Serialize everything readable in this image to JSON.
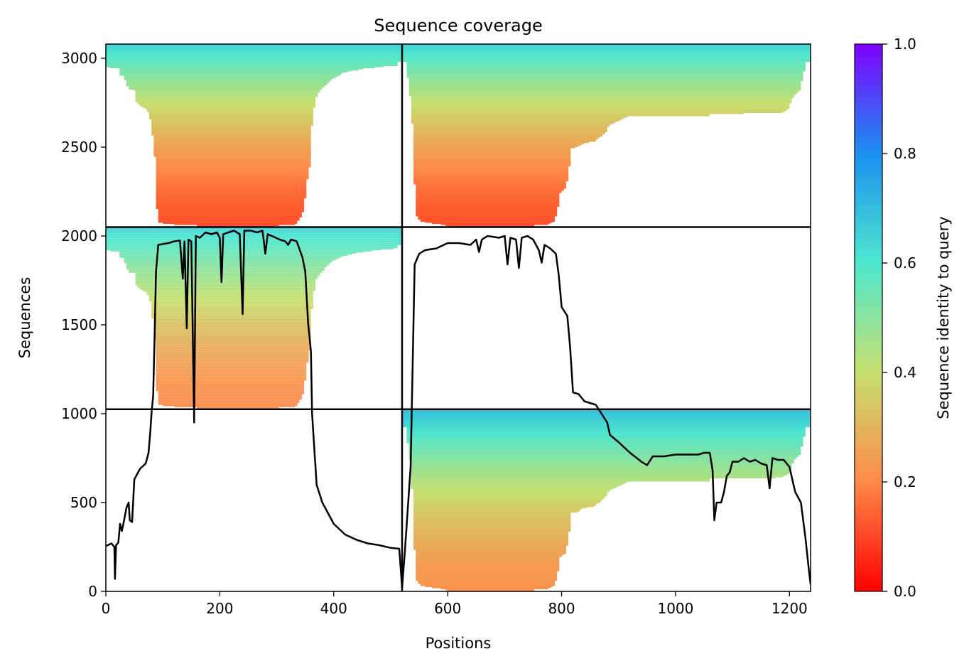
{
  "chart_data": {
    "type": "heatmap",
    "title": "Sequence coverage",
    "xlabel": "Positions",
    "ylabel": "Sequences",
    "xlim": [
      0,
      1237
    ],
    "ylim": [
      0,
      3080
    ],
    "xticks": [
      0,
      200,
      400,
      600,
      800,
      1000,
      1200
    ],
    "yticks": [
      0,
      500,
      1000,
      1500,
      2000,
      2500,
      3000
    ],
    "colorbar": {
      "label": "Sequence identity to query",
      "range": [
        0.0,
        1.0
      ],
      "ticks": [
        "0.0",
        "0.2",
        "0.4",
        "0.6",
        "0.8",
        "1.0"
      ],
      "colormap": "rainbow_r"
    },
    "block_boundaries": {
      "x": [
        520
      ],
      "y": [
        1025,
        2050
      ]
    },
    "coverage_blocks": [
      {
        "x": [
          0,
          520
        ],
        "y": [
          2050,
          3080
        ],
        "identity_top": 0.65,
        "identity_bottom": 0.12
      },
      {
        "x": [
          520,
          1237
        ],
        "y": [
          2050,
          3080
        ],
        "identity_top": 0.65,
        "identity_bottom": 0.12
      },
      {
        "x": [
          0,
          520
        ],
        "y": [
          1025,
          2050
        ],
        "identity_top": 0.65,
        "identity_bottom": 0.2
      },
      {
        "x": [
          520,
          1237
        ],
        "y": [
          0,
          1025
        ],
        "identity_top": 0.7,
        "identity_bottom": 0.22
      }
    ],
    "series": [
      {
        "type": "line",
        "color": "#000000",
        "points": [
          [
            0,
            255
          ],
          [
            10,
            270
          ],
          [
            15,
            250
          ],
          [
            16,
            70
          ],
          [
            18,
            260
          ],
          [
            22,
            275
          ],
          [
            25,
            380
          ],
          [
            28,
            340
          ],
          [
            32,
            400
          ],
          [
            36,
            470
          ],
          [
            40,
            500
          ],
          [
            42,
            400
          ],
          [
            46,
            390
          ],
          [
            50,
            630
          ],
          [
            55,
            660
          ],
          [
            60,
            690
          ],
          [
            65,
            705
          ],
          [
            70,
            720
          ],
          [
            75,
            780
          ],
          [
            78,
            900
          ],
          [
            80,
            1000
          ],
          [
            83,
            1100
          ],
          [
            86,
            1500
          ],
          [
            88,
            1800
          ],
          [
            92,
            1950
          ],
          [
            100,
            1955
          ],
          [
            110,
            1960
          ],
          [
            120,
            1970
          ],
          [
            130,
            1975
          ],
          [
            135,
            1760
          ],
          [
            138,
            1970
          ],
          [
            142,
            1480
          ],
          [
            145,
            1980
          ],
          [
            150,
            1970
          ],
          [
            155,
            950
          ],
          [
            158,
            2000
          ],
          [
            165,
            1990
          ],
          [
            175,
            2020
          ],
          [
            185,
            2010
          ],
          [
            195,
            2020
          ],
          [
            200,
            1990
          ],
          [
            203,
            1740
          ],
          [
            206,
            2010
          ],
          [
            215,
            2020
          ],
          [
            225,
            2030
          ],
          [
            235,
            2010
          ],
          [
            240,
            1560
          ],
          [
            243,
            2030
          ],
          [
            255,
            2030
          ],
          [
            265,
            2020
          ],
          [
            275,
            2030
          ],
          [
            280,
            1900
          ],
          [
            284,
            2010
          ],
          [
            295,
            1995
          ],
          [
            305,
            1980
          ],
          [
            315,
            1970
          ],
          [
            320,
            1950
          ],
          [
            325,
            1980
          ],
          [
            335,
            1970
          ],
          [
            345,
            1880
          ],
          [
            350,
            1800
          ],
          [
            355,
            1510
          ],
          [
            360,
            1350
          ],
          [
            362,
            1000
          ],
          [
            366,
            800
          ],
          [
            370,
            600
          ],
          [
            380,
            500
          ],
          [
            390,
            440
          ],
          [
            400,
            380
          ],
          [
            420,
            320
          ],
          [
            440,
            290
          ],
          [
            460,
            270
          ],
          [
            480,
            260
          ],
          [
            500,
            245
          ],
          [
            515,
            240
          ],
          [
            520,
            20
          ],
          [
            525,
            230
          ],
          [
            535,
            700
          ],
          [
            542,
            1840
          ],
          [
            550,
            1900
          ],
          [
            560,
            1920
          ],
          [
            580,
            1930
          ],
          [
            600,
            1960
          ],
          [
            620,
            1960
          ],
          [
            640,
            1950
          ],
          [
            650,
            1980
          ],
          [
            655,
            1910
          ],
          [
            660,
            1980
          ],
          [
            670,
            2000
          ],
          [
            690,
            1990
          ],
          [
            700,
            2000
          ],
          [
            705,
            1840
          ],
          [
            710,
            1990
          ],
          [
            720,
            1980
          ],
          [
            725,
            1820
          ],
          [
            730,
            1990
          ],
          [
            740,
            2000
          ],
          [
            750,
            1980
          ],
          [
            760,
            1920
          ],
          [
            765,
            1850
          ],
          [
            770,
            1950
          ],
          [
            780,
            1930
          ],
          [
            790,
            1900
          ],
          [
            795,
            1780
          ],
          [
            800,
            1600
          ],
          [
            810,
            1550
          ],
          [
            815,
            1370
          ],
          [
            820,
            1120
          ],
          [
            830,
            1110
          ],
          [
            840,
            1070
          ],
          [
            850,
            1060
          ],
          [
            860,
            1050
          ],
          [
            870,
            1000
          ],
          [
            880,
            950
          ],
          [
            885,
            880
          ],
          [
            900,
            840
          ],
          [
            920,
            780
          ],
          [
            940,
            730
          ],
          [
            950,
            710
          ],
          [
            960,
            760
          ],
          [
            980,
            760
          ],
          [
            1000,
            770
          ],
          [
            1020,
            770
          ],
          [
            1040,
            770
          ],
          [
            1050,
            780
          ],
          [
            1060,
            780
          ],
          [
            1065,
            680
          ],
          [
            1068,
            400
          ],
          [
            1072,
            500
          ],
          [
            1080,
            500
          ],
          [
            1085,
            560
          ],
          [
            1090,
            650
          ],
          [
            1095,
            670
          ],
          [
            1100,
            730
          ],
          [
            1110,
            730
          ],
          [
            1120,
            750
          ],
          [
            1130,
            730
          ],
          [
            1140,
            740
          ],
          [
            1150,
            720
          ],
          [
            1160,
            710
          ],
          [
            1165,
            580
          ],
          [
            1170,
            750
          ],
          [
            1180,
            740
          ],
          [
            1190,
            740
          ],
          [
            1200,
            700
          ],
          [
            1210,
            560
          ],
          [
            1220,
            500
          ],
          [
            1228,
            300
          ],
          [
            1233,
            150
          ],
          [
            1237,
            40
          ]
        ]
      }
    ]
  }
}
